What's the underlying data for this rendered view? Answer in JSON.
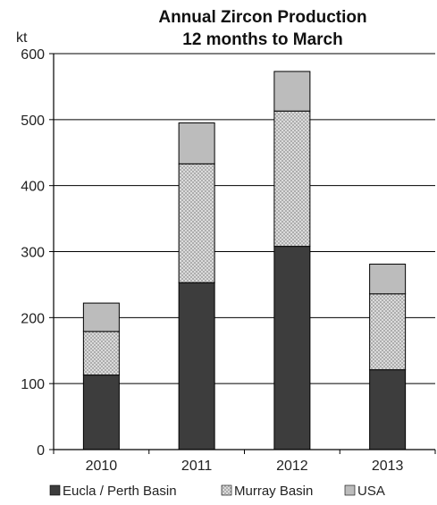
{
  "chart_data": {
    "type": "bar",
    "stacked": true,
    "title": [
      "Annual Zircon Production",
      "12 months to March"
    ],
    "ylabel": "kt",
    "xlabel": "",
    "categories": [
      "2010",
      "2011",
      "2012",
      "2013"
    ],
    "ylim": [
      0,
      600
    ],
    "yticks": [
      0,
      100,
      200,
      300,
      400,
      500,
      600
    ],
    "grid": true,
    "legend_position": "bottom",
    "series": [
      {
        "name": "Eucla / Perth Basin",
        "values": [
          113,
          253,
          308,
          121
        ],
        "color": "#3d3d3d",
        "pattern": "solid"
      },
      {
        "name": "Murray Basin",
        "values": [
          66,
          180,
          205,
          115
        ],
        "color": "#d9d9d9",
        "pattern": "crosshatch"
      },
      {
        "name": "USA",
        "values": [
          43,
          62,
          60,
          45
        ],
        "color": "#bcbcbc",
        "pattern": "solid"
      }
    ]
  }
}
